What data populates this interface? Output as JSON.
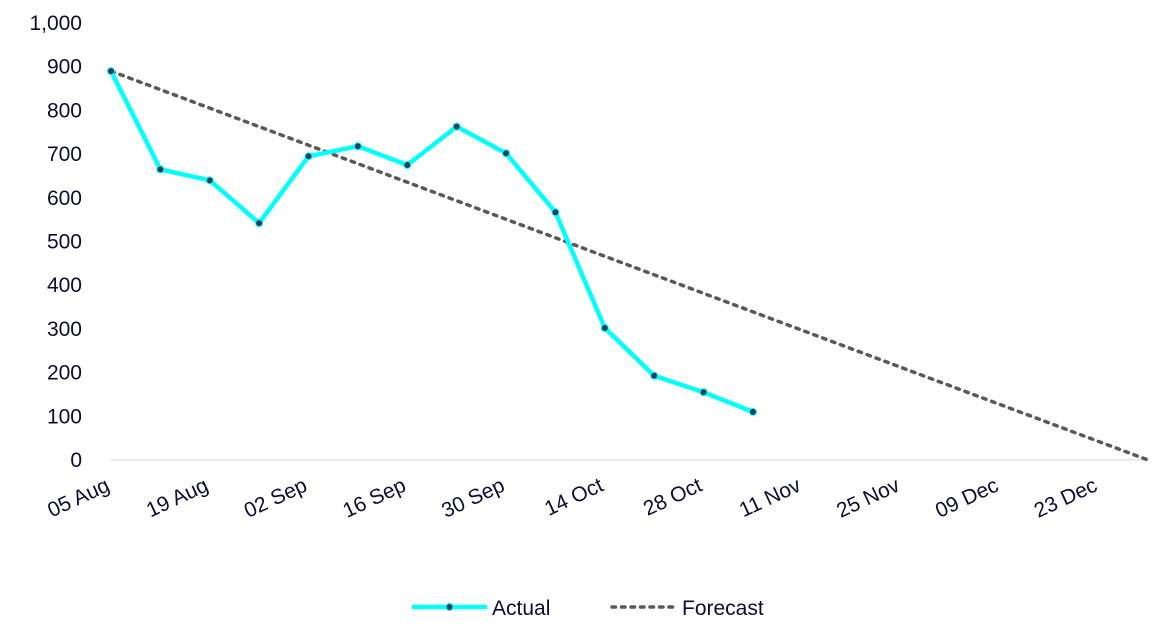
{
  "chart_data": {
    "type": "line",
    "title": "",
    "xlabel": "",
    "ylabel": "",
    "ylim": [
      0,
      1000
    ],
    "xlim": [
      "2024-08-05",
      "2024-12-30"
    ],
    "y_ticks": [
      {
        "value": 0,
        "label": "0"
      },
      {
        "value": 100,
        "label": "100"
      },
      {
        "value": 200,
        "label": "200"
      },
      {
        "value": 300,
        "label": "300"
      },
      {
        "value": 400,
        "label": "400"
      },
      {
        "value": 500,
        "label": "500"
      },
      {
        "value": 600,
        "label": "600"
      },
      {
        "value": 700,
        "label": "700"
      },
      {
        "value": 800,
        "label": "800"
      },
      {
        "value": 900,
        "label": "900"
      },
      {
        "value": 1000,
        "label": "1,000"
      }
    ],
    "x_ticks": [
      {
        "date": "2024-08-05",
        "label": "05 Aug"
      },
      {
        "date": "2024-08-19",
        "label": "19 Aug"
      },
      {
        "date": "2024-09-02",
        "label": "02 Sep"
      },
      {
        "date": "2024-09-16",
        "label": "16 Sep"
      },
      {
        "date": "2024-09-30",
        "label": "30 Sep"
      },
      {
        "date": "2024-10-14",
        "label": "14 Oct"
      },
      {
        "date": "2024-10-28",
        "label": "28 Oct"
      },
      {
        "date": "2024-11-11",
        "label": "11 Nov"
      },
      {
        "date": "2024-11-25",
        "label": "25 Nov"
      },
      {
        "date": "2024-12-09",
        "label": "09 Dec"
      },
      {
        "date": "2024-12-23",
        "label": "23 Dec"
      }
    ],
    "grid": false,
    "legend_position": "bottom",
    "series": [
      {
        "name": "Actual",
        "color": "#00ffff",
        "marker_color": "#1f3f5f",
        "style": "solid",
        "points": [
          {
            "x": "2024-08-05",
            "y": 890
          },
          {
            "x": "2024-08-12",
            "y": 665
          },
          {
            "x": "2024-08-19",
            "y": 640
          },
          {
            "x": "2024-08-26",
            "y": 542
          },
          {
            "x": "2024-09-02",
            "y": 695
          },
          {
            "x": "2024-09-09",
            "y": 718
          },
          {
            "x": "2024-09-16",
            "y": 675
          },
          {
            "x": "2024-09-23",
            "y": 763
          },
          {
            "x": "2024-09-30",
            "y": 702
          },
          {
            "x": "2024-10-07",
            "y": 567
          },
          {
            "x": "2024-10-14",
            "y": 302
          },
          {
            "x": "2024-10-21",
            "y": 193
          },
          {
            "x": "2024-10-28",
            "y": 155
          },
          {
            "x": "2024-11-04",
            "y": 110
          }
        ]
      },
      {
        "name": "Forecast",
        "color": "#595959",
        "style": "dotted",
        "points": [
          {
            "x": "2024-08-05",
            "y": 890
          },
          {
            "x": "2024-12-30",
            "y": 0
          }
        ]
      }
    ]
  }
}
